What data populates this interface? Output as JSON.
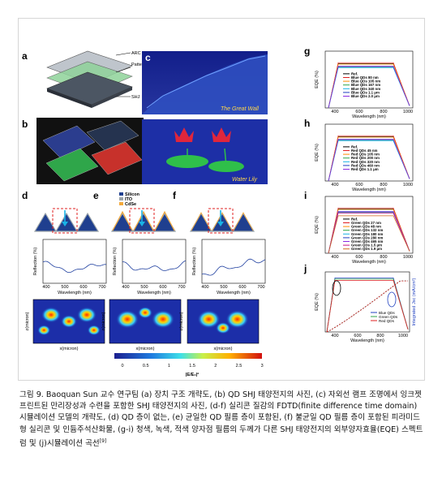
{
  "figure": {
    "panel_labels": [
      "a",
      "b",
      "c",
      "d",
      "e",
      "f",
      "g",
      "h",
      "i",
      "j"
    ],
    "panel_a": {
      "labels": [
        "ARC",
        "Patterned QDs film",
        "SHJ"
      ]
    },
    "panel_c": {
      "caption": "The Great Wall"
    },
    "panel_lily": {
      "caption": "Water Lily"
    },
    "structure_legend": [
      "Silicon",
      "ITO",
      "CdSe"
    ],
    "structure_colors": {
      "silicon": "#1f3f8f",
      "ito": "#9aa3a9",
      "cdse": "#f4a93b"
    },
    "reflection_ylabel": "Reflection (%)",
    "reflection_xlabel": "Wavelength (nm)",
    "field_xlabel": "x(micron)",
    "field_ylabel": "z(micron)",
    "colorbar": {
      "ticks": [
        "0",
        "0.5",
        "1",
        "1.5",
        "2",
        "2.5",
        "3"
      ],
      "label": "|E/E₀|²"
    },
    "eqe_ylabel": "EQE (%)",
    "eqe_xlabel": "Wavelength (nm)",
    "legend_g": [
      "Ref.",
      "Blue QDs 80 nm",
      "Blue QDs 105 nm",
      "Blue QDs 167 nm",
      "Blue QDs 340 nm",
      "Blue QDs 1.1 μm",
      "Blue QDs 2.0 μm"
    ],
    "legend_h": [
      "Ref.",
      "Red QDs 45 nm",
      "Red QDs 105 nm",
      "Red QDs 200 nm",
      "Red QDs 320 nm",
      "Red QDs 460 nm",
      "Red QDs 1.1 μm"
    ],
    "legend_i": [
      "Ref.",
      "Green QDs 27 nm",
      "Green QDs 48 nm",
      "Green QDs 132 nm",
      "Green QDs 180 nm",
      "Green QDs 280 nm",
      "Green QDs 465 nm",
      "Green QDs 1.5 μm",
      "Green QDs 1.9 μm"
    ],
    "legend_j": [
      "Blue QDs",
      "Green QDs",
      "Red QDs"
    ],
    "j_right_ylabel": "Integrated Jsc (mA/cm²)",
    "eqe_xticks": [
      "400",
      "600",
      "800",
      "1000"
    ],
    "refl_xticks": [
      "400",
      "500",
      "600",
      "700"
    ]
  },
  "caption": {
    "text": "그림 9. Baoquan Sun 교수 연구팀 (a) 장치 구조 개략도, (b) QD SHJ 태양전지의 사진, (c) 자외선 램프 조명에서 잉크젯 프린트된 만리장성과 수련을 포함한 SHJ 태양전지의 사진, (d-f) 실리콘 질감의 FDTD(finite difference time domain) 시뮬레이션 모델의 개략도, (d) QD 층이 없는, (e) 균일한 QD 필름 층이 포함된, (f) 불균일 QD 필름 층이 포함된 피라미드형 실리콘 및 인듐주석산화물, (g-i) 청색, 녹색, 적색 양자점 필름의 두께가 다른 SHJ 태양전지의 외부양자효율(EQE) 스펙트럼 및 (j)시뮬레이션 곡선",
    "superscript": "[9]"
  }
}
